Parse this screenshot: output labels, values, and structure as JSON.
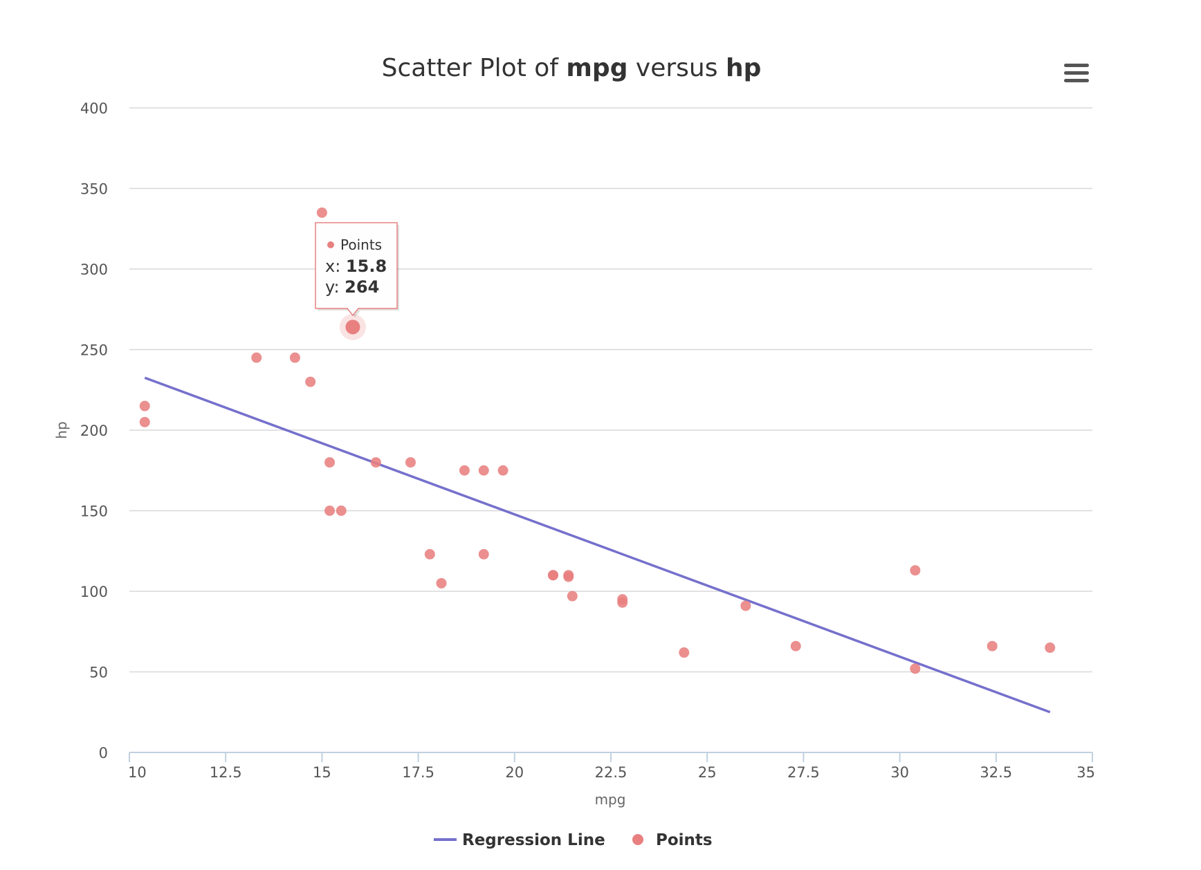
{
  "chart_data": {
    "type": "scatter",
    "title_parts": [
      "Scatter Plot of ",
      "mpg",
      " versus ",
      "hp"
    ],
    "xlabel": "mpg",
    "ylabel": "hp",
    "xlim": [
      10,
      35
    ],
    "ylim": [
      0,
      400
    ],
    "x_ticks": [
      "10",
      "12.5",
      "15",
      "17.5",
      "20",
      "22.5",
      "25",
      "27.5",
      "30",
      "32.5",
      "35"
    ],
    "y_ticks": [
      "0",
      "50",
      "100",
      "150",
      "200",
      "250",
      "300",
      "350",
      "400"
    ],
    "grid": true,
    "legend_placement": "bottom-center",
    "series": [
      {
        "name": "Regression Line",
        "kind": "line",
        "color": "#7570cc",
        "points": [
          [
            10.4,
            232.5
          ],
          [
            33.9,
            25.0
          ]
        ]
      },
      {
        "name": "Points",
        "kind": "scatter",
        "color": "#e88080",
        "points": [
          [
            21.0,
            110
          ],
          [
            21.0,
            110
          ],
          [
            22.8,
            93
          ],
          [
            21.4,
            110
          ],
          [
            18.7,
            175
          ],
          [
            18.1,
            105
          ],
          [
            14.3,
            245
          ],
          [
            24.4,
            62
          ],
          [
            22.8,
            95
          ],
          [
            19.2,
            123
          ],
          [
            17.8,
            123
          ],
          [
            16.4,
            180
          ],
          [
            17.3,
            180
          ],
          [
            15.2,
            180
          ],
          [
            10.4,
            205
          ],
          [
            10.4,
            215
          ],
          [
            14.7,
            230
          ],
          [
            32.4,
            66
          ],
          [
            30.4,
            52
          ],
          [
            33.9,
            65
          ],
          [
            21.5,
            97
          ],
          [
            15.5,
            150
          ],
          [
            15.2,
            150
          ],
          [
            13.3,
            245
          ],
          [
            19.2,
            175
          ],
          [
            27.3,
            66
          ],
          [
            26.0,
            91
          ],
          [
            30.4,
            113
          ],
          [
            15.8,
            264
          ],
          [
            19.7,
            175
          ],
          [
            15.0,
            335
          ],
          [
            21.4,
            109
          ]
        ]
      }
    ],
    "tooltip": {
      "series": "Points",
      "x_label": "x: ",
      "x_value": "15.8",
      "y_label": "y: ",
      "y_value": "264",
      "point": [
        15.8,
        264
      ]
    }
  },
  "menu": {
    "icon": "hamburger-menu-icon"
  }
}
